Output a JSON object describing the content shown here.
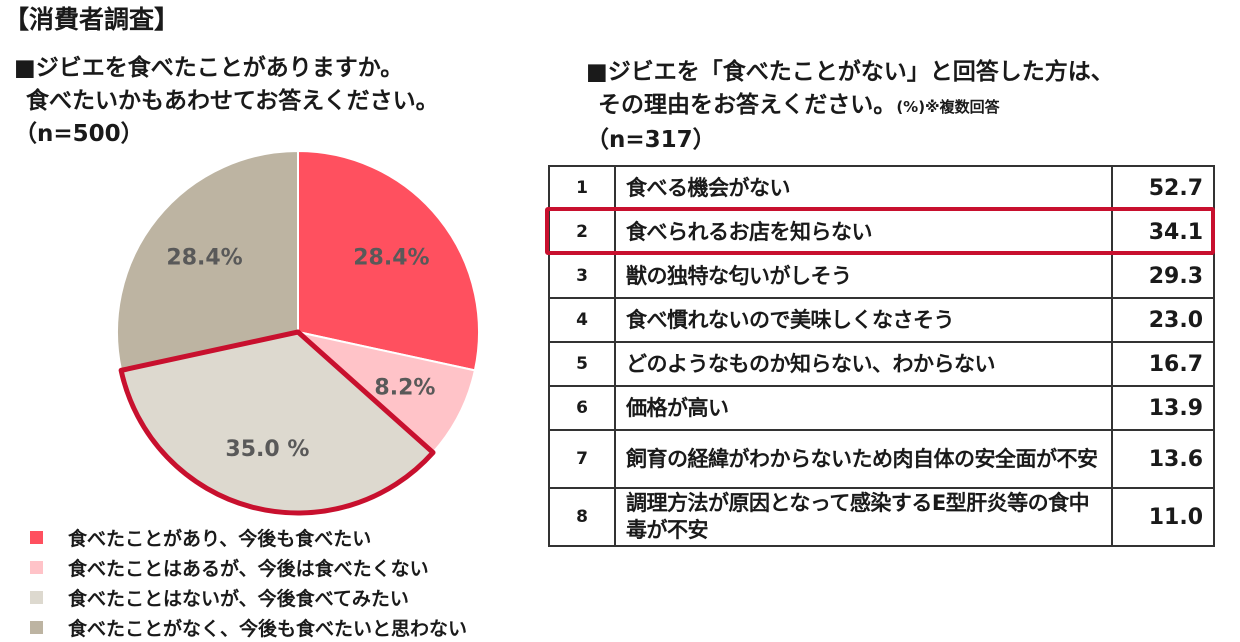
{
  "survey_tag": "【消費者調査】",
  "question1": {
    "line1": "■ジビエを食べたことがありますか。",
    "line2": "食べたいかもあわせてお答えください。",
    "sample": "（n=500）"
  },
  "question2": {
    "line1": "■ジビエを「食べたことがない」と回答した方は、",
    "line2": "その理由をお答えください。",
    "unit_note": "(%)※複数回答",
    "sample": "（n=317）"
  },
  "chart_data": [
    {
      "type": "pie",
      "title": "",
      "start": "12 o'clock, clockwise",
      "slices": [
        {
          "label": "食べたことがあり、今後も食べたい",
          "value": 28.4,
          "display": "28.4%",
          "color": "#ff505f",
          "emphasized": false
        },
        {
          "label": "食べたことはあるが、今後は食べたくない",
          "value": 8.2,
          "display": "8.2%",
          "color": "#ffc3c8",
          "emphasized": false
        },
        {
          "label": "食べたことはないが、今後食べてみたい",
          "value": 35.0,
          "display": "35.0 %",
          "color": "#ddd9cf",
          "emphasized": true
        },
        {
          "label": "食べたことがなく、今後も食べたいと思わない",
          "value": 28.4,
          "display": "28.4%",
          "color": "#bdb4a2",
          "emphasized": false
        }
      ],
      "highlight_color": "#c8102e",
      "legend_position": "bottom-left"
    },
    {
      "type": "table",
      "columns": [
        "rank",
        "reason",
        "percent"
      ],
      "rows": [
        {
          "rank": "1",
          "reason": "食べる機会がない",
          "value": "52.7"
        },
        {
          "rank": "2",
          "reason": "食べられるお店を知らない",
          "value": "34.1",
          "highlighted": true
        },
        {
          "rank": "3",
          "reason": "獣の独特な匂いがしそう",
          "value": "29.3"
        },
        {
          "rank": "4",
          "reason": "食べ慣れないので美味しくなさそう",
          "value": "23.0"
        },
        {
          "rank": "5",
          "reason": "どのようなものか知らない、わからない",
          "value": "16.7"
        },
        {
          "rank": "6",
          "reason": "価格が高い",
          "value": "13.9"
        },
        {
          "rank": "7",
          "reason": "飼育の経緯がわからないため肉自体の安全面が不安",
          "value": "13.6"
        },
        {
          "rank": "8",
          "reason": "調理方法が原因となって感染するE型肝炎等の食中毒が不安",
          "value": "11.0"
        }
      ]
    }
  ]
}
